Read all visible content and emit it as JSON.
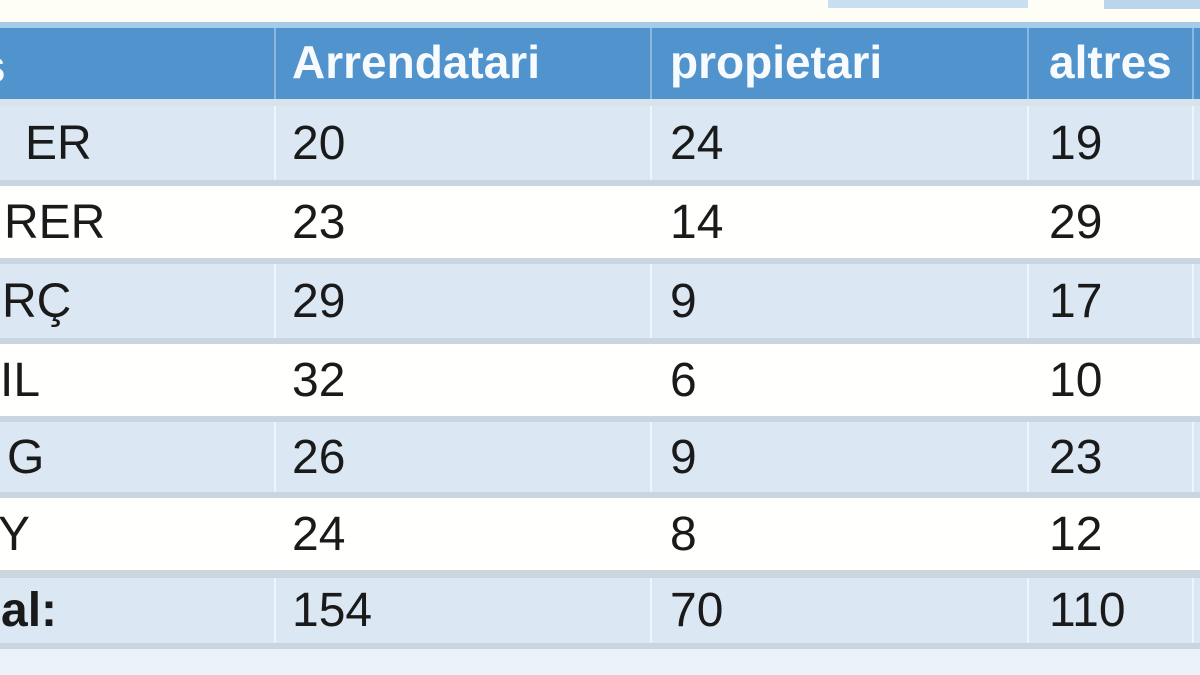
{
  "table": {
    "header_fragment": "s",
    "columns": [
      {
        "label": "Arrendatari"
      },
      {
        "label": "propietari"
      },
      {
        "label": "altres"
      }
    ],
    "rows": [
      {
        "label_fragment": "ER",
        "values": [
          "20",
          "24",
          "19"
        ]
      },
      {
        "label_fragment": "RER",
        "values": [
          "23",
          "14",
          "29"
        ]
      },
      {
        "label_fragment": "RÇ",
        "values": [
          "29",
          "9",
          "17"
        ]
      },
      {
        "label_fragment": "IL",
        "values": [
          "32",
          "6",
          "10"
        ]
      },
      {
        "label_fragment": "G",
        "values": [
          "26",
          "9",
          "23"
        ]
      },
      {
        "label_fragment": "Y",
        "values": [
          "24",
          "8",
          "12"
        ]
      }
    ],
    "total_row": {
      "label_fragment": "al:",
      "values": [
        "154",
        "70",
        "110"
      ]
    }
  },
  "colors": {
    "header_blue": "#5093CD",
    "band_blue": "#DBE8F4",
    "row_white": "#FFFFFE",
    "separator": "#C9D5DF",
    "accent_line": "#A6CBE7",
    "page_top": "#FFFEF6",
    "bottom_strip": "#EAF2F9",
    "header_text": "#F8FBFE",
    "body_text": "#1A1A1A"
  },
  "chart_data": {
    "type": "table",
    "title": "",
    "columns": [
      "(cut-off month column, fragment 's')",
      "Arrendatari",
      "propietari",
      "altres"
    ],
    "categories": [
      "ER",
      "RER",
      "RÇ",
      "IL",
      "G",
      "Y"
    ],
    "series": [
      {
        "name": "Arrendatari",
        "values": [
          20,
          23,
          29,
          32,
          26,
          24
        ],
        "total": 154
      },
      {
        "name": "propietari",
        "values": [
          24,
          14,
          9,
          6,
          9,
          8
        ],
        "total": 70
      },
      {
        "name": "altres",
        "values": [
          19,
          29,
          17,
          10,
          23,
          12
        ],
        "total": 110
      }
    ],
    "total_label": "al:",
    "layout_hints": "banded blue/white rows, blue header, left column and right edge cropped"
  }
}
